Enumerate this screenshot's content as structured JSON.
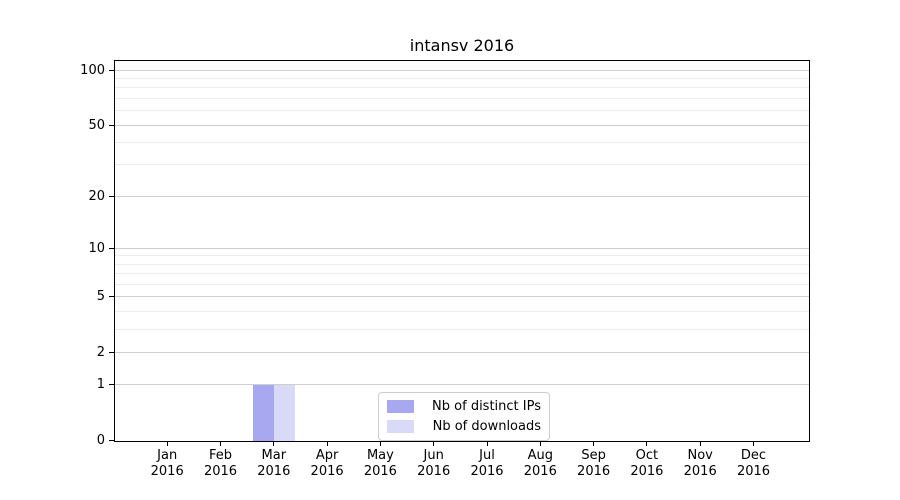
{
  "chart_data": {
    "type": "bar",
    "title": "intansv 2016",
    "categories": [
      "Jan",
      "Feb",
      "Mar",
      "Apr",
      "May",
      "Jun",
      "Jul",
      "Aug",
      "Sep",
      "Oct",
      "Nov",
      "Dec"
    ],
    "x_year": "2016",
    "series": [
      {
        "name": "Nb of distinct IPs",
        "color": "#a8a8f0",
        "values": [
          0,
          0,
          1,
          0,
          0,
          0,
          0,
          0,
          0,
          0,
          0,
          0
        ]
      },
      {
        "name": "Nb of downloads",
        "color": "#d9d9f8",
        "values": [
          0,
          0,
          1,
          0,
          0,
          0,
          0,
          0,
          0,
          0,
          0,
          0
        ]
      }
    ],
    "y_scale": "log1p",
    "ylim": [
      0,
      113
    ],
    "y_major_ticks": [
      0,
      1,
      2,
      5,
      10,
      20,
      50,
      100
    ],
    "y_minor_gridlines": [
      3,
      4,
      6,
      7,
      8,
      9,
      30,
      40,
      60,
      70,
      80,
      90
    ],
    "grid": "horizontal",
    "legend_position": "lower center",
    "colors": {
      "major_grid": "#cfcfcf",
      "minor_grid": "#ececec",
      "axis": "#000000"
    }
  }
}
